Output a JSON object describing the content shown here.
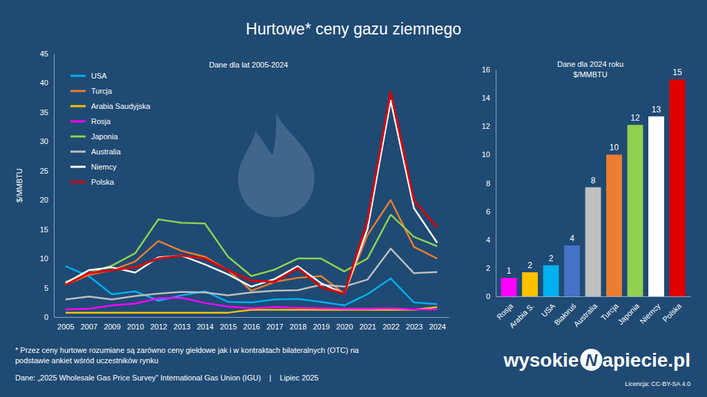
{
  "title": "Hurtowe* ceny gazu ziemnego",
  "chart_data": [
    {
      "type": "line",
      "title": "Dane dla lat 2005-2024",
      "y_label": "$/MMBTU",
      "categories": [
        "2005",
        "2007",
        "2009",
        "2010",
        "2012",
        "2013",
        "2014",
        "2015",
        "2016",
        "2017",
        "2018",
        "2019",
        "2020",
        "2021",
        "2022",
        "2023",
        "2024"
      ],
      "ylim": [
        0,
        45
      ],
      "yticks": [
        0,
        5,
        10,
        15,
        20,
        25,
        30,
        35,
        40,
        45
      ],
      "grid": false,
      "legend": "top-left",
      "series": [
        {
          "name": "USA",
          "color": "#00b0f0",
          "values": [
            8.7,
            7.0,
            3.9,
            4.4,
            2.8,
            3.7,
            4.4,
            2.6,
            2.5,
            3.0,
            3.1,
            2.6,
            2.0,
            3.9,
            6.6,
            2.5,
            2.2
          ]
        },
        {
          "name": "Turcja",
          "color": "#ed7d31",
          "values": [
            5.5,
            7.2,
            8.0,
            9.5,
            13.0,
            11.3,
            10.3,
            8.0,
            4.5,
            6.0,
            6.7,
            7.0,
            4.0,
            14.0,
            20.0,
            12.0,
            10.0
          ]
        },
        {
          "name": "Arabia Saudyjska",
          "color": "#ffc000",
          "values": [
            0.75,
            0.75,
            0.75,
            0.75,
            0.75,
            0.75,
            0.75,
            0.75,
            1.25,
            1.25,
            1.25,
            1.25,
            1.25,
            1.25,
            1.25,
            1.25,
            1.7
          ]
        },
        {
          "name": "Rosja",
          "color": "#ff00ff",
          "values": [
            1.3,
            1.4,
            2.0,
            2.3,
            3.2,
            3.3,
            2.4,
            1.8,
            1.5,
            1.7,
            1.6,
            1.5,
            1.4,
            1.4,
            1.5,
            1.3,
            1.3
          ]
        },
        {
          "name": "Japonia",
          "color": "#92d050",
          "values": [
            6.0,
            7.5,
            8.8,
            10.9,
            16.7,
            16.1,
            16.0,
            10.3,
            7.0,
            8.1,
            10.0,
            10.0,
            7.8,
            10.0,
            17.5,
            13.7,
            12.1
          ]
        },
        {
          "name": "Australia",
          "color": "#bfbfbf",
          "values": [
            3.0,
            3.5,
            3.0,
            3.6,
            4.0,
            4.3,
            4.2,
            3.7,
            4.2,
            4.5,
            4.6,
            5.5,
            5.2,
            6.4,
            11.7,
            7.5,
            7.7
          ]
        },
        {
          "name": "Niemcy",
          "color": "#ffffff",
          "values": [
            5.8,
            8.0,
            8.5,
            7.6,
            10.2,
            10.5,
            9.0,
            7.3,
            5.2,
            6.5,
            8.7,
            5.8,
            4.0,
            15.0,
            37.0,
            18.6,
            12.7
          ]
        },
        {
          "name": "Polska",
          "color": "#e00000",
          "values": [
            5.5,
            7.5,
            8.0,
            8.5,
            10.0,
            10.5,
            10.0,
            8.0,
            6.2,
            6.0,
            8.4,
            5.1,
            4.0,
            16.5,
            38.5,
            19.9,
            15.3
          ]
        }
      ]
    },
    {
      "type": "bar",
      "title": "Dane dla 2024 roku",
      "subtitle": "$/MMBTU",
      "categories": [
        "Rosja",
        "Arabia S.",
        "USA",
        "Białoruś",
        "Australia",
        "Turcja",
        "Japonia",
        "Niemcy",
        "Polska"
      ],
      "values": [
        1.3,
        1.7,
        2.2,
        3.6,
        7.7,
        10.0,
        12.1,
        12.7,
        15.3
      ],
      "value_labels": [
        "1",
        "2",
        "2",
        "4",
        "8",
        "10",
        "12",
        "13",
        "15"
      ],
      "colors": [
        "#ff00ff",
        "#ffc000",
        "#00b0f0",
        "#4472c4",
        "#bfbfbf",
        "#ed7d31",
        "#92d050",
        "#ffffff",
        "#e00000"
      ],
      "ylim": [
        0,
        16
      ],
      "yticks": [
        0,
        2,
        4,
        6,
        8,
        10,
        12,
        14,
        16
      ],
      "grid": false,
      "data_labels": true
    }
  ],
  "notes": [
    "* Przez ceny hurtowe rozumiane są zarówno ceny giełdowe jak i w kontraktach bilateralnych (OTC) na",
    "podstawie ankiet wśród uczestników rynku"
  ],
  "source": "Dane: „2025 Wholesale Gas Price Survey” International Gas Union (IGU)    |    Lipiec 2025",
  "logo": {
    "left": "wysokie",
    "mark": "N",
    "right": "apiecie.pl"
  },
  "license": "Licencja: CC-BY-SA 4.0"
}
